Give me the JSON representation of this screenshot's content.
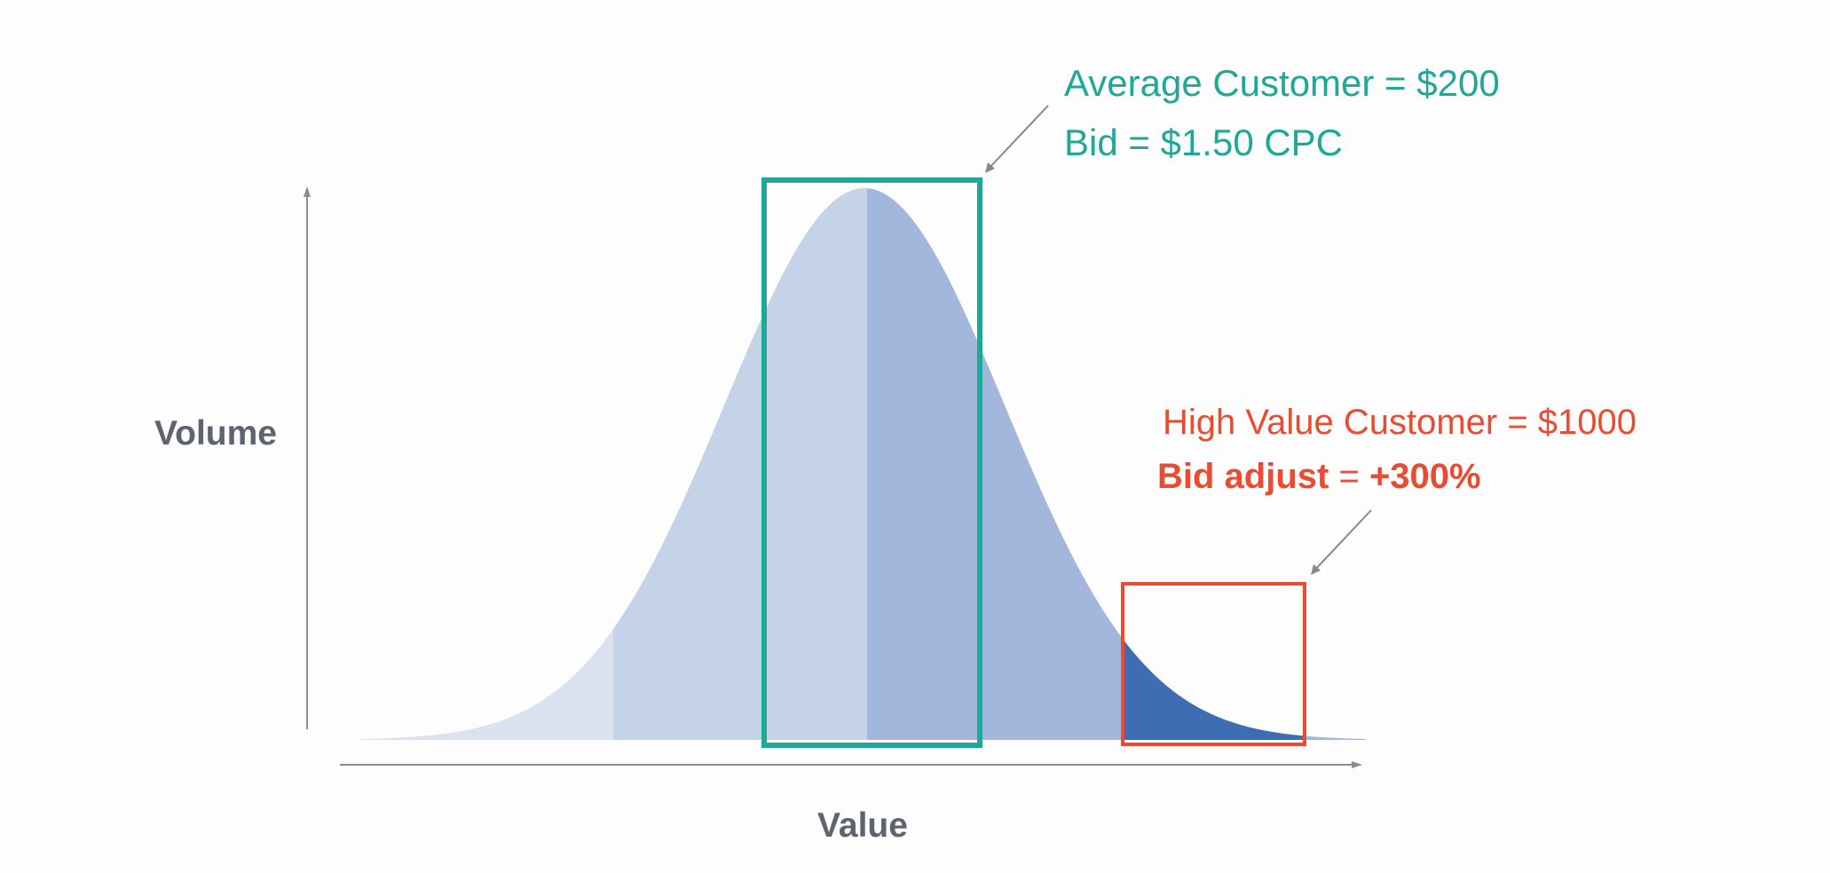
{
  "axes": {
    "y_label": "Volume",
    "x_label": "Value"
  },
  "average_callout": {
    "line1": "Average Customer = $200",
    "line2": "Bid = $1.50 CPC",
    "color": "#1fa898"
  },
  "high_value_callout": {
    "line1": "High Value Customer = $1000",
    "line2_bold": "Bid adjust",
    "line2_rest_prefix": " = ",
    "line2_bold_value": "+300%",
    "color": "#e84c33"
  },
  "colors": {
    "band_far_left": "#dae2f0",
    "band_left": "#c4d3e8",
    "band_right": "#a2b7db",
    "band_tail": "#3f6db3",
    "axis": "#8c8c8c",
    "axis_label": "#5d6470"
  }
}
